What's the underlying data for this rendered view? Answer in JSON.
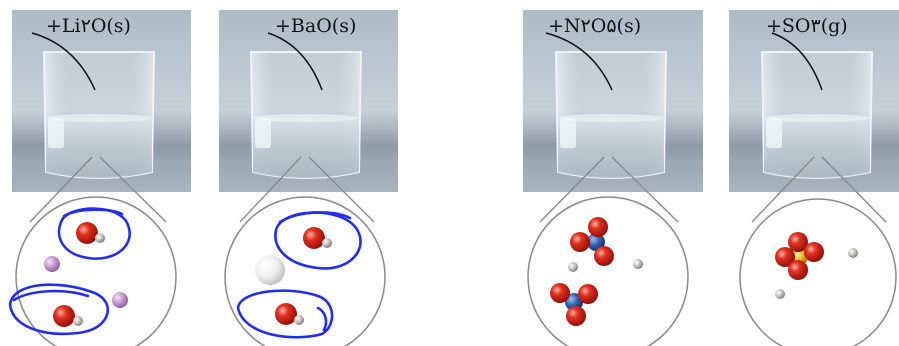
{
  "colors": {
    "photo_bg": "#b9c4cf",
    "water": "#c9d6dd",
    "oxygen": "#d8231b",
    "hydrogen": "#cfcfcf",
    "lithium": "#c89ad4",
    "barium": "#f2f2f2",
    "nitrogen": "#2f5fa8",
    "sulfur": "#e8b21f",
    "annotation_ink": "#1f2ef0"
  },
  "beakers": [
    {
      "label": "+Li۲O(s)",
      "circle_contents": [
        "water-molecule",
        "water-molecule",
        "lithium-ion",
        "lithium-ion"
      ],
      "annotated": true
    },
    {
      "label": "+BaO(s)",
      "circle_contents": [
        "water-molecule",
        "water-molecule",
        "barium-ion"
      ],
      "annotated": true
    },
    {
      "label": "+N۲O۵(s)",
      "circle_contents": [
        "nitrate-ion",
        "nitrate-ion",
        "hydrogen-ion",
        "hydrogen-ion"
      ],
      "annotated": false
    },
    {
      "label": "+SO۳(g)",
      "circle_contents": [
        "sulfate-ion",
        "hydrogen-ion",
        "hydrogen-ion"
      ],
      "annotated": false
    }
  ]
}
